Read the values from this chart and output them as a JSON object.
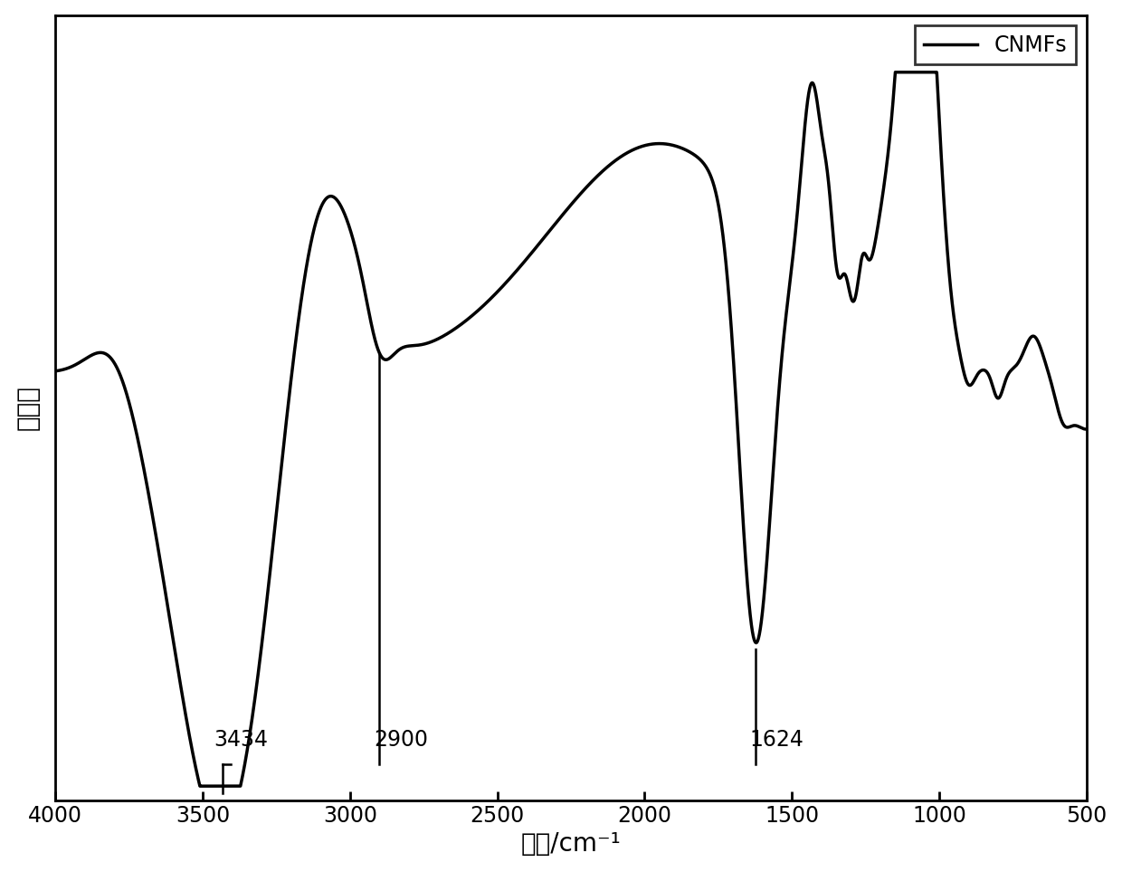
{
  "xmin": 500,
  "xmax": 4000,
  "xlabel": "波数/cm⁻¹",
  "ylabel": "吸光度",
  "legend_label": "CNMFs",
  "line_color": "#000000",
  "background_color": "#ffffff",
  "annotations": [
    {
      "x": 3434,
      "label": "3434"
    },
    {
      "x": 2900,
      "label": "2900"
    },
    {
      "x": 1624,
      "label": "1624"
    }
  ],
  "xlabel_fontsize": 20,
  "ylabel_fontsize": 20,
  "tick_fontsize": 17,
  "legend_fontsize": 17,
  "xticks": [
    4000,
    3500,
    3000,
    2500,
    2000,
    1500,
    1000,
    500
  ]
}
